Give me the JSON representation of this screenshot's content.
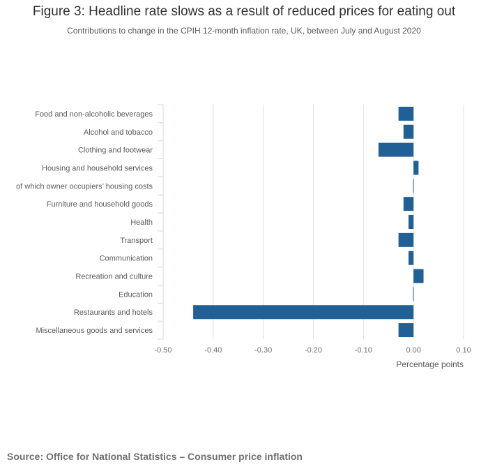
{
  "header": {
    "title": "Figure 3: Headline rate slows as a result of reduced prices for eating out",
    "subtitle": "Contributions to change in the CPIH 12-month inflation rate, UK, between July and August 2020"
  },
  "footer": {
    "source": "Source: Office for National Statistics – Consumer price inflation"
  },
  "chart_data": {
    "type": "bar",
    "orientation": "horizontal",
    "title": "Figure 3: Headline rate slows as a result of reduced prices for eating out",
    "subtitle": "Contributions to change in the CPIH 12-month inflation rate, UK, between July and August 2020",
    "xlabel": "Percentage points",
    "ylabel": "",
    "xlim": [
      -0.5,
      0.1
    ],
    "xticks": [
      -0.5,
      -0.4,
      -0.3,
      -0.2,
      -0.1,
      0.0,
      0.1
    ],
    "xtick_labels": [
      "-0.50",
      "-0.40",
      "-0.30",
      "-0.20",
      "-0.10",
      "0.00",
      "0.10"
    ],
    "grid": true,
    "bar_color": "#206095",
    "categories": [
      "Food and non-alcoholic beverages",
      "Alcohol and tobacco",
      "Clothing and footwear",
      "Housing and household services",
      "of which owner occupiers’ housing costs",
      "Furniture and household goods",
      "Health",
      "Transport",
      "Communication",
      "Recreation and culture",
      "Education",
      "Restaurants and hotels",
      "Miscellaneous goods and services"
    ],
    "values": [
      -0.03,
      -0.02,
      -0.07,
      0.01,
      -0.001,
      -0.02,
      -0.01,
      -0.03,
      -0.01,
      0.02,
      -0.001,
      -0.44,
      -0.03
    ]
  }
}
